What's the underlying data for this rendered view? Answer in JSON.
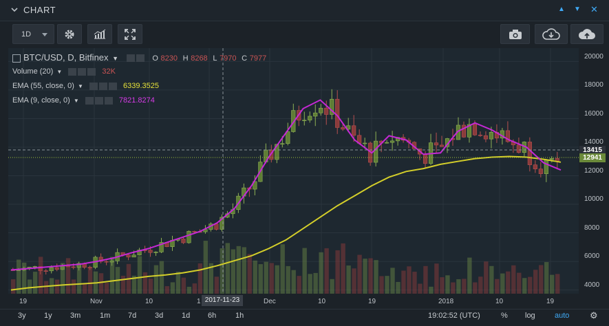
{
  "panel": {
    "title": "CHART"
  },
  "toolbar": {
    "timeframe": "1D"
  },
  "legend": {
    "symbol": "BTC/USD, D, Bitfinex",
    "ohlc": {
      "o_label": "O",
      "o": "8230",
      "h_label": "H",
      "h": "8268",
      "l_label": "L",
      "l": "7970",
      "c_label": "C",
      "c": "7977"
    },
    "volume": {
      "label": "Volume (20)",
      "value": "32K"
    },
    "ema55": {
      "label": "EMA (55, close, 0)",
      "value": "6339.3525"
    },
    "ema9": {
      "label": "EMA (9, close, 0)",
      "value": "7821.8274"
    }
  },
  "colors": {
    "up": "#7d9e4a",
    "down": "#a94c4c",
    "ema55": "#d4cf2a",
    "ema9": "#c628d6",
    "accent": "#3fa9f5"
  },
  "price_axis": {
    "ticks": [
      "20000",
      "18000",
      "16000",
      "14000",
      "12000",
      "10000",
      "8000",
      "6000",
      "4000"
    ],
    "last_price": "12941",
    "crosshair_price": "13415"
  },
  "time_axis": {
    "ticks": [
      "19",
      "Nov",
      "10",
      "1",
      "Dec",
      "10",
      "19",
      "2018",
      "10",
      "19"
    ],
    "crosshair_date": "2017-11-23"
  },
  "ranges": [
    "3y",
    "1y",
    "3m",
    "1m",
    "7d",
    "3d",
    "1d",
    "6h",
    "1h"
  ],
  "footer": {
    "clock": "19:02:52 (UTC)",
    "percent": "%",
    "log": "log",
    "auto": "auto"
  },
  "chart_data": {
    "type": "candlestick",
    "symbol": "BTC/USD",
    "interval": "D",
    "ylim": [
      3500,
      20500
    ],
    "ema55": [
      4000,
      4150,
      4250,
      4350,
      4420,
      4500,
      4650,
      4800,
      4950,
      5050,
      5200,
      5400,
      5700,
      6050,
      6400,
      6900,
      7500,
      8300,
      9100,
      9900,
      10600,
      11300,
      11900,
      12300,
      12500,
      12800,
      13000,
      13200,
      13300,
      13350,
      13300,
      13150,
      12950
    ],
    "ema9": [
      5400,
      5500,
      5600,
      5700,
      5800,
      6000,
      6250,
      6600,
      6900,
      7300,
      7700,
      8100,
      8700,
      9700,
      11300,
      13300,
      15000,
      16700,
      17300,
      16200,
      14500,
      13600,
      14800,
      14500,
      13500,
      13600,
      15100,
      15700,
      15200,
      14500,
      14000,
      12900,
      12400
    ],
    "candles_approx": {
      "note_excluded": true
    }
  }
}
